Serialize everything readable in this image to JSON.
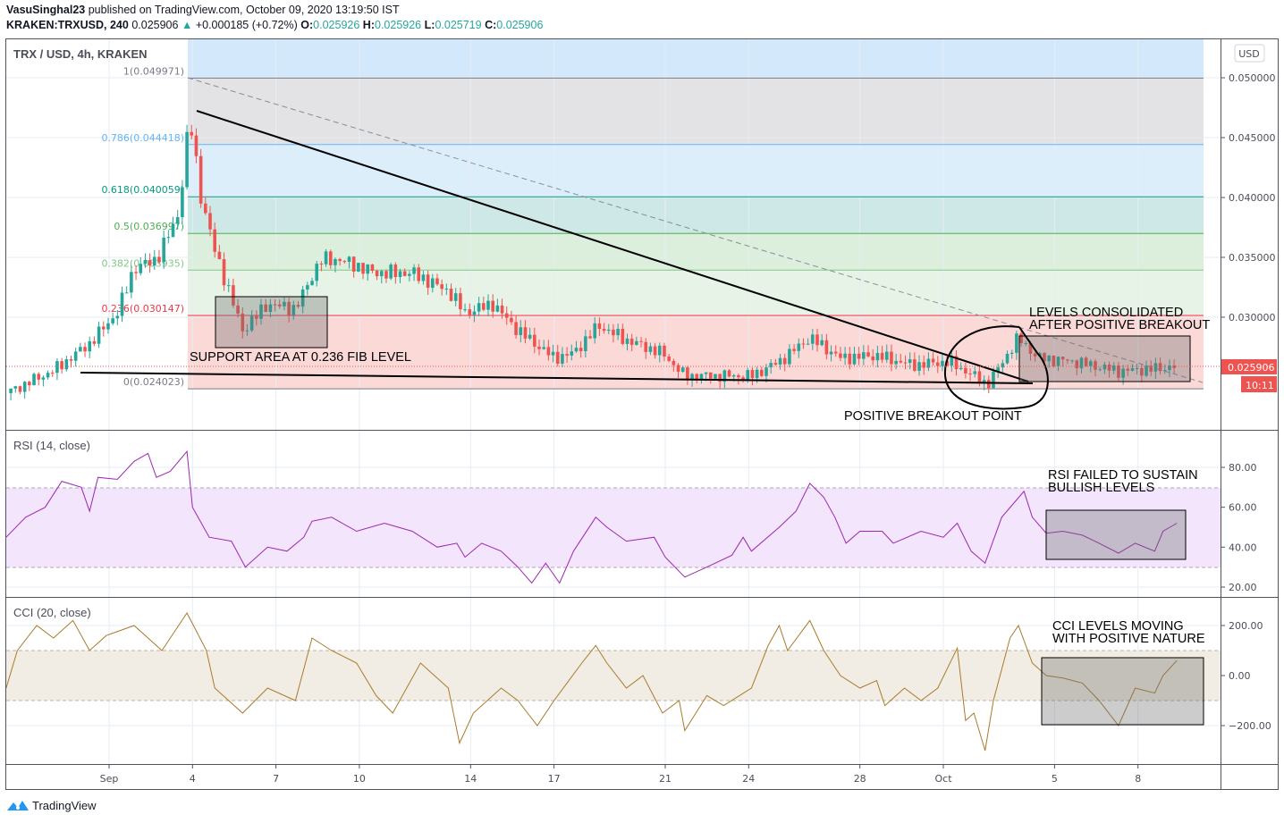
{
  "header": {
    "author": "VasuSinghal23",
    "published": "published on TradingView.com, October 09, 2020 13:19:50 IST",
    "symbol": "KRAKEN:TRXUSD, 240",
    "last": "0.025906",
    "change": "+0.000185 (+0.72%)",
    "o_label": "O:",
    "o": "0.025926",
    "h_label": "H:",
    "h": "0.025926",
    "l_label": "L:",
    "l": "0.025719",
    "c_label": "C:",
    "c": "0.025906"
  },
  "colors": {
    "up": "#26a69a",
    "down": "#ef5350",
    "rsi": "#9c27b0",
    "cci": "#a87b2a",
    "price_label": "#ef5350"
  },
  "footer": {
    "brand": "TradingView"
  },
  "chart_data": [
    {
      "type": "candlestick",
      "title": "TRX / USD, 4h, KRAKEN",
      "currency": "USD",
      "x_ticks": [
        {
          "label": "Sep",
          "day": 0
        },
        {
          "label": "4",
          "day": 3
        },
        {
          "label": "7",
          "day": 6
        },
        {
          "label": "10",
          "day": 9
        },
        {
          "label": "14",
          "day": 13
        },
        {
          "label": "17",
          "day": 16
        },
        {
          "label": "21",
          "day": 20
        },
        {
          "label": "24",
          "day": 23
        },
        {
          "label": "28",
          "day": 27
        },
        {
          "label": "Oct",
          "day": 30
        },
        {
          "label": "5",
          "day": 34
        },
        {
          "label": "8",
          "day": 37
        }
      ],
      "x_unit": "days since Sep 1, 2020",
      "y_ticks": [
        "0.050000",
        "0.045000",
        "0.040000",
        "0.035000",
        "0.030000"
      ],
      "y_tick_values": [
        0.05,
        0.045,
        0.04,
        0.035,
        0.03
      ],
      "ylim": [
        0.0235,
        0.0532
      ],
      "current_price": {
        "value": 0.025906,
        "label": "0.025906",
        "countdown": "10:11"
      },
      "price_path": [
        [
          -3.7,
          0.02366
        ],
        [
          -2.0,
          0.02555
        ],
        [
          -0.7,
          0.0278
        ],
        [
          0.3,
          0.0304
        ],
        [
          0.9,
          0.0341
        ],
        [
          1.7,
          0.0348
        ],
        [
          2.5,
          0.0386
        ],
        [
          2.9,
          0.0468
        ],
        [
          3.3,
          0.0401
        ],
        [
          3.8,
          0.0356
        ],
        [
          4.8,
          0.0289
        ],
        [
          5.7,
          0.0311
        ],
        [
          6.7,
          0.0307
        ],
        [
          7.6,
          0.0348
        ],
        [
          8.3,
          0.0348
        ],
        [
          9.6,
          0.0337
        ],
        [
          10.9,
          0.0337
        ],
        [
          12.2,
          0.0322
        ],
        [
          12.8,
          0.0304
        ],
        [
          13.8,
          0.0311
        ],
        [
          14.7,
          0.0289
        ],
        [
          16.0,
          0.0266
        ],
        [
          16.7,
          0.027
        ],
        [
          17.6,
          0.0293
        ],
        [
          18.6,
          0.0281
        ],
        [
          19.9,
          0.027
        ],
        [
          20.7,
          0.0251
        ],
        [
          21.8,
          0.0251
        ],
        [
          23.1,
          0.0251
        ],
        [
          24.1,
          0.0263
        ],
        [
          25.2,
          0.0283
        ],
        [
          26.3,
          0.0266
        ],
        [
          27.6,
          0.0268
        ],
        [
          28.9,
          0.026
        ],
        [
          30.2,
          0.0263
        ],
        [
          30.8,
          0.0255
        ],
        [
          31.6,
          0.0244
        ],
        [
          32.7,
          0.0283
        ],
        [
          33.4,
          0.0266
        ],
        [
          34.7,
          0.0263
        ],
        [
          36.3,
          0.0255
        ],
        [
          37.6,
          0.0257
        ],
        [
          38.4,
          0.0259
        ]
      ],
      "fib_levels": [
        {
          "level": "1",
          "value": 0.049971,
          "label": "1(0.049971)",
          "color": "#787b86",
          "fill": "#e3e3e5"
        },
        {
          "level": "0.786",
          "value": 0.044418,
          "label": "0.786(0.044418)",
          "color": "#64b5f6",
          "fill": "#ddeefb"
        },
        {
          "level": "0.618",
          "value": 0.040059,
          "label": "0.618(0.040059)",
          "color": "#089981",
          "fill": "#cde8e6"
        },
        {
          "level": "0.5",
          "value": 0.036997,
          "label": "0.5(0.036997)",
          "color": "#4caf50",
          "fill": "#dcefdc"
        },
        {
          "level": "0.382",
          "value": 0.033935,
          "label": "0.382(0.033935)",
          "color": "#81c784",
          "fill": "#e6f3e6"
        },
        {
          "level": "0.236",
          "value": 0.030147,
          "label": "0.236(0.030147)",
          "color": "#f23645",
          "fill": "#fbd9d7"
        },
        {
          "level": "0",
          "value": 0.024023,
          "label": "0(0.024023)",
          "color": "#787b86",
          "fill": ""
        }
      ],
      "annotations": {
        "support": "SUPPORT AREA  AT 0.236 FIB LEVEL",
        "consolidated_1": "LEVELS CONSOLIDATED",
        "consolidated_2": "AFTER POSITIVE BREAKOUT",
        "breakout": "POSITIVE BREAKOUT POINT"
      }
    },
    {
      "type": "line",
      "title": "RSI (14, close)",
      "y_ticks": [
        "80.00",
        "60.00",
        "40.00",
        "20.00"
      ],
      "y_tick_values": [
        80,
        60,
        40,
        20
      ],
      "band": [
        30,
        70
      ],
      "annotation_1": "RSI FAILED TO SUSTAIN",
      "annotation_2": "BULLISH LEVELS",
      "points": [
        [
          -3.7,
          45
        ],
        [
          -3.0,
          55
        ],
        [
          -2.3,
          60
        ],
        [
          -1.7,
          73
        ],
        [
          -1.0,
          70
        ],
        [
          -0.7,
          58
        ],
        [
          -0.4,
          75
        ],
        [
          0.3,
          74
        ],
        [
          0.9,
          83
        ],
        [
          1.4,
          87
        ],
        [
          1.7,
          75
        ],
        [
          2.2,
          78
        ],
        [
          2.8,
          88
        ],
        [
          3.0,
          60
        ],
        [
          3.6,
          45
        ],
        [
          4.4,
          43
        ],
        [
          4.9,
          30
        ],
        [
          5.7,
          40
        ],
        [
          6.4,
          38
        ],
        [
          7.0,
          45
        ],
        [
          7.3,
          53
        ],
        [
          8.0,
          55
        ],
        [
          8.9,
          48
        ],
        [
          9.9,
          52
        ],
        [
          10.9,
          48
        ],
        [
          11.8,
          40
        ],
        [
          12.5,
          42
        ],
        [
          12.8,
          35
        ],
        [
          13.4,
          42
        ],
        [
          14.1,
          38
        ],
        [
          14.7,
          30
        ],
        [
          15.2,
          22
        ],
        [
          15.7,
          32
        ],
        [
          16.2,
          22
        ],
        [
          16.7,
          38
        ],
        [
          17.5,
          55
        ],
        [
          17.9,
          50
        ],
        [
          18.6,
          43
        ],
        [
          19.6,
          45
        ],
        [
          20.0,
          35
        ],
        [
          20.7,
          25
        ],
        [
          21.5,
          30
        ],
        [
          22.4,
          36
        ],
        [
          22.8,
          45
        ],
        [
          23.1,
          38
        ],
        [
          24.1,
          50
        ],
        [
          24.7,
          58
        ],
        [
          25.2,
          72
        ],
        [
          25.7,
          65
        ],
        [
          26.1,
          55
        ],
        [
          26.5,
          42
        ],
        [
          27.0,
          48
        ],
        [
          27.8,
          48
        ],
        [
          28.2,
          42
        ],
        [
          29.2,
          48
        ],
        [
          30.0,
          45
        ],
        [
          30.5,
          52
        ],
        [
          31.0,
          38
        ],
        [
          31.5,
          32
        ],
        [
          32.1,
          55
        ],
        [
          32.9,
          68
        ],
        [
          33.2,
          55
        ],
        [
          33.7,
          47
        ],
        [
          34.3,
          48
        ],
        [
          35.0,
          46
        ],
        [
          35.6,
          42
        ],
        [
          36.3,
          37
        ],
        [
          36.9,
          42
        ],
        [
          37.6,
          38
        ],
        [
          37.9,
          48
        ],
        [
          38.4,
          52
        ]
      ]
    },
    {
      "type": "line",
      "title": "CCI (20, close)",
      "y_ticks": [
        "200.00",
        "0.00",
        "−200.00"
      ],
      "y_tick_values": [
        200,
        0,
        -200
      ],
      "band": [
        -100,
        100
      ],
      "annotation_1": "CCI LEVELS MOVING",
      "annotation_2": "WITH POSITIVE NATURE",
      "points": [
        [
          -3.7,
          -50
        ],
        [
          -3.3,
          100
        ],
        [
          -2.6,
          200
        ],
        [
          -2.0,
          150
        ],
        [
          -1.3,
          220
        ],
        [
          -0.7,
          100
        ],
        [
          -0.1,
          160
        ],
        [
          0.9,
          200
        ],
        [
          1.9,
          100
        ],
        [
          2.8,
          250
        ],
        [
          3.5,
          100
        ],
        [
          3.8,
          -50
        ],
        [
          4.8,
          -150
        ],
        [
          5.7,
          -50
        ],
        [
          6.7,
          -100
        ],
        [
          7.3,
          150
        ],
        [
          8.0,
          100
        ],
        [
          8.9,
          50
        ],
        [
          9.6,
          -80
        ],
        [
          10.2,
          -150
        ],
        [
          11.2,
          50
        ],
        [
          12.2,
          -50
        ],
        [
          12.6,
          -270
        ],
        [
          13.1,
          -150
        ],
        [
          14.1,
          -50
        ],
        [
          14.7,
          -100
        ],
        [
          15.4,
          -200
        ],
        [
          16.0,
          -100
        ],
        [
          17.0,
          50
        ],
        [
          17.5,
          120
        ],
        [
          17.9,
          50
        ],
        [
          18.6,
          -50
        ],
        [
          19.2,
          0
        ],
        [
          19.9,
          -150
        ],
        [
          20.5,
          -100
        ],
        [
          20.7,
          -220
        ],
        [
          21.5,
          -80
        ],
        [
          22.1,
          -120
        ],
        [
          23.1,
          -50
        ],
        [
          23.7,
          120
        ],
        [
          24.1,
          200
        ],
        [
          24.4,
          100
        ],
        [
          25.2,
          220
        ],
        [
          25.7,
          100
        ],
        [
          26.3,
          0
        ],
        [
          27.0,
          -50
        ],
        [
          27.6,
          -20
        ],
        [
          27.9,
          -120
        ],
        [
          28.6,
          -50
        ],
        [
          29.2,
          -100
        ],
        [
          29.8,
          -50
        ],
        [
          30.5,
          110
        ],
        [
          30.8,
          -180
        ],
        [
          31.1,
          -150
        ],
        [
          31.5,
          -300
        ],
        [
          31.8,
          -100
        ],
        [
          32.4,
          150
        ],
        [
          32.7,
          200
        ],
        [
          33.2,
          50
        ],
        [
          33.7,
          0
        ],
        [
          34.3,
          -10
        ],
        [
          35.0,
          -30
        ],
        [
          35.6,
          -100
        ],
        [
          36.3,
          -200
        ],
        [
          36.9,
          -50
        ],
        [
          37.6,
          -70
        ],
        [
          37.9,
          0
        ],
        [
          38.4,
          60
        ]
      ]
    }
  ]
}
